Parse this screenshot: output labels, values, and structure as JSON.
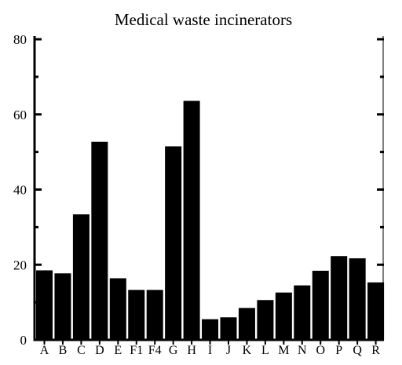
{
  "chart_data": {
    "type": "bar",
    "title": "Medical waste incinerators",
    "categories": [
      "A",
      "B",
      "C",
      "D",
      "E",
      "F1",
      "F4",
      "G",
      "H",
      "I",
      "J",
      "K",
      "L",
      "M",
      "N",
      "O",
      "P",
      "Q",
      "R"
    ],
    "values": [
      18.5,
      17.7,
      33.4,
      52.7,
      16.4,
      13.3,
      13.3,
      51.5,
      63.6,
      5.5,
      6.0,
      8.5,
      10.6,
      12.6,
      14.5,
      18.4,
      22.3,
      21.7,
      15.3
    ],
    "xlabel": "",
    "ylabel": "",
    "ylim": [
      0,
      80
    ],
    "yticks": [
      "0",
      "20",
      "40",
      "60",
      "80"
    ],
    "grid": false,
    "colors": {
      "bar": "#000000",
      "axis": "#000000"
    }
  }
}
